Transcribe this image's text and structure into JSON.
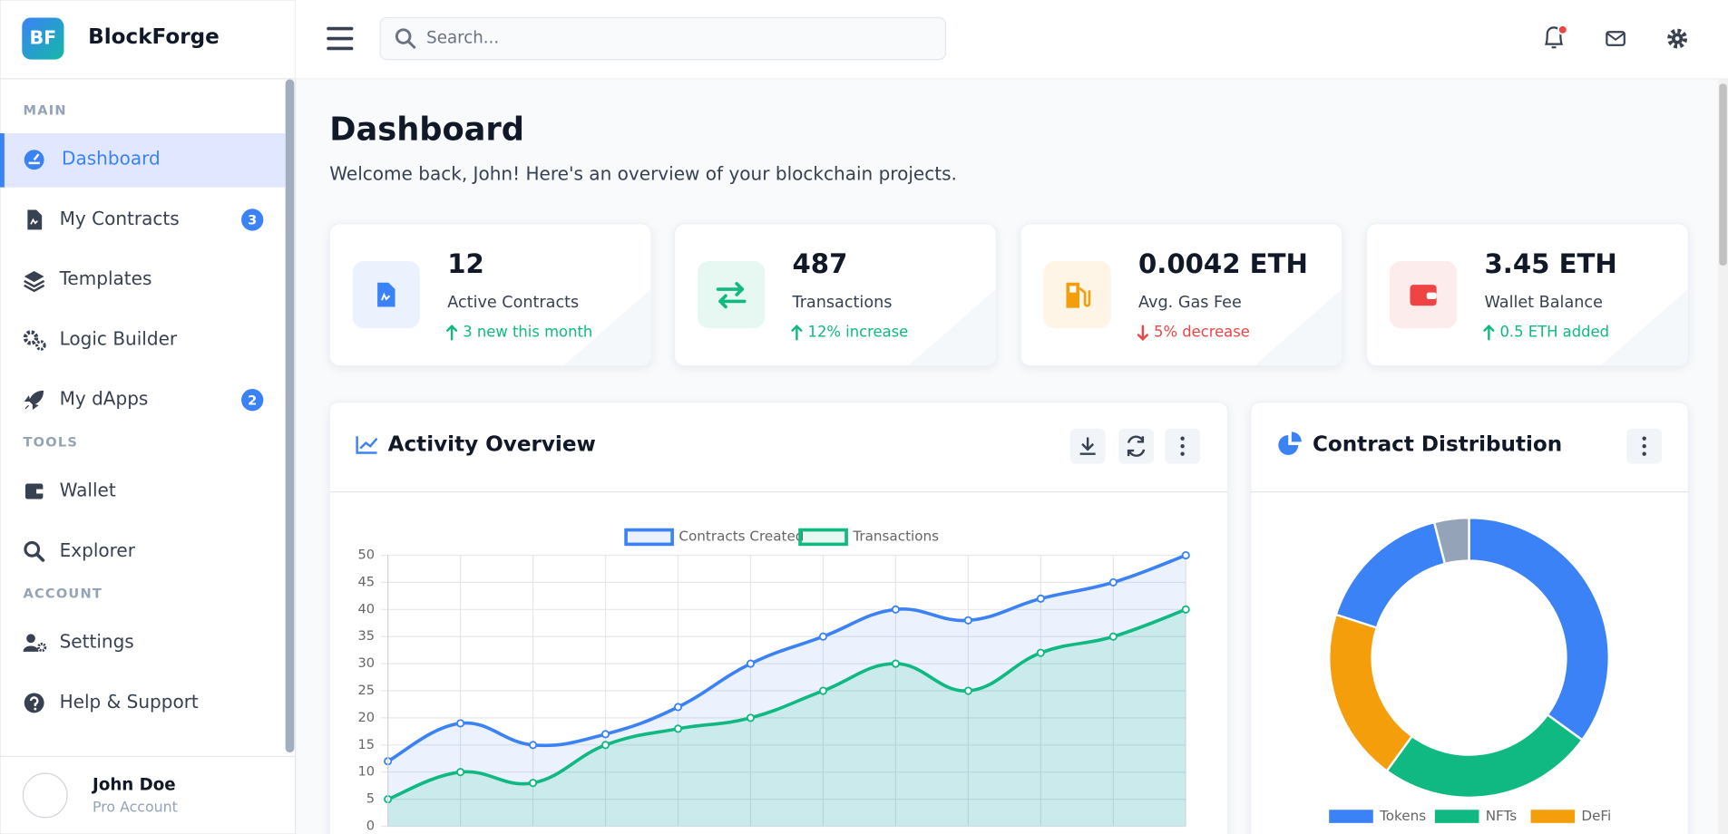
{
  "sidebar": {
    "logo": "BF",
    "brand": "BlockForge",
    "sections": [
      {
        "title": "MAIN",
        "items": [
          {
            "label": "Dashboard",
            "active": true
          },
          {
            "label": "My Contracts",
            "badge": 3
          },
          {
            "label": "Templates"
          },
          {
            "label": "Logic Builder"
          },
          {
            "label": "My dApps",
            "badge": 2
          }
        ]
      },
      {
        "title": "TOOLS",
        "items": [
          {
            "label": "Wallet"
          },
          {
            "label": "Explorer"
          }
        ]
      },
      {
        "title": "ACCOUNT",
        "items": [
          {
            "label": "Settings"
          },
          {
            "label": "Help & Support"
          }
        ]
      }
    ],
    "user": {
      "name": "John Doe",
      "plan": "Pro Account"
    }
  },
  "header": {
    "search_placeholder": "Search...",
    "notifications": true
  },
  "page": {
    "title": "Dashboard",
    "subtitle": "Welcome back, John! Here's an overview of your blockchain projects."
  },
  "stats": [
    {
      "value": 12,
      "label": "Active Contracts",
      "change": "3 new this month",
      "trend": "up",
      "color": "#3b82f6"
    },
    {
      "value": 487,
      "label": "Transactions",
      "change": "12% increase",
      "trend": "up",
      "color": "#10b981"
    },
    {
      "value": "0.0042 ETH",
      "label": "Avg. Gas Fee",
      "change": "5% decrease",
      "trend": "down",
      "color": "#f59e0b"
    },
    {
      "value": "3.45 ETH",
      "label": "Wallet Balance",
      "change": "0.5 ETH added",
      "trend": "up",
      "color": "#ef4444"
    }
  ],
  "chart_data": [
    {
      "type": "line",
      "title": "Activity Overview",
      "categories": [
        null,
        null,
        null,
        null,
        null,
        null,
        null,
        null,
        null,
        null,
        null,
        null
      ],
      "series": [
        {
          "name": "Contracts Created",
          "color": "#3b82f6",
          "values": [
            12,
            19,
            15,
            17,
            22,
            30,
            35,
            40,
            38,
            42,
            45,
            50
          ]
        },
        {
          "name": "Transactions",
          "color": "#10b981",
          "values": [
            5,
            10,
            8,
            15,
            18,
            20,
            25,
            30,
            25,
            32,
            35,
            40
          ]
        }
      ],
      "ylim": [
        0,
        50
      ],
      "yticks": [
        0,
        5,
        10,
        15,
        20,
        25,
        30,
        35,
        40,
        45,
        50
      ],
      "grid": true,
      "smooth": true,
      "fill": true,
      "legend": "top"
    },
    {
      "type": "doughnut",
      "title": "Contract Distribution",
      "categories": [
        "Tokens",
        "NFTs",
        "DeFi",
        null,
        null
      ],
      "values": [
        35,
        25,
        20,
        16,
        4
      ],
      "colors": [
        "#3b82f6",
        "#10b981",
        "#f59e0b",
        "#3b82f6",
        "#94a3b8"
      ],
      "legend": "bottom"
    }
  ]
}
